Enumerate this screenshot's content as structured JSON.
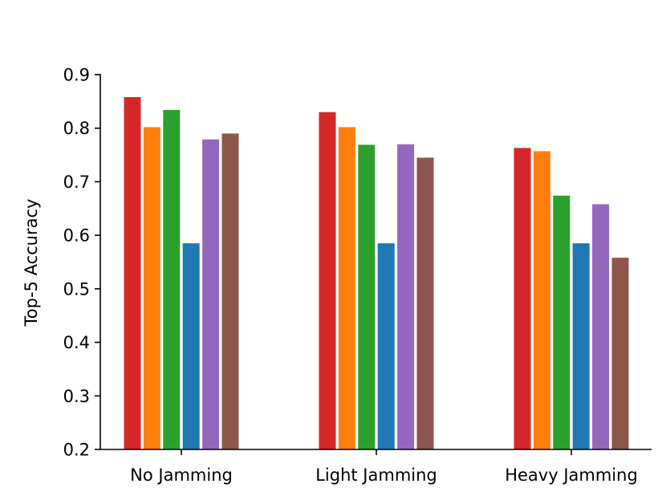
{
  "chart_data": {
    "type": "bar",
    "title": "",
    "xlabel": "",
    "ylabel": "Top-5 Accuracy",
    "ylim": [
      0.2,
      0.9
    ],
    "yticks": [
      "0.2",
      "0.3",
      "0.4",
      "0.5",
      "0.6",
      "0.7",
      "0.8",
      "0.9"
    ],
    "categories": [
      "No Jamming",
      "Light Jamming",
      "Heavy Jamming"
    ],
    "grid": false,
    "legend": "none",
    "series": [
      {
        "name": "series-1",
        "color": "#d62728",
        "values": [
          0.858,
          0.83,
          0.763
        ]
      },
      {
        "name": "series-2",
        "color": "#ff7f0e",
        "values": [
          0.802,
          0.802,
          0.757
        ]
      },
      {
        "name": "series-3",
        "color": "#2ca02c",
        "values": [
          0.834,
          0.769,
          0.674
        ]
      },
      {
        "name": "series-4",
        "color": "#1f77b4",
        "values": [
          0.585,
          0.585,
          0.585
        ]
      },
      {
        "name": "series-5",
        "color": "#9467bd",
        "values": [
          0.779,
          0.77,
          0.658
        ]
      },
      {
        "name": "series-6",
        "color": "#8c564b",
        "values": [
          0.79,
          0.745,
          0.558
        ]
      }
    ]
  }
}
